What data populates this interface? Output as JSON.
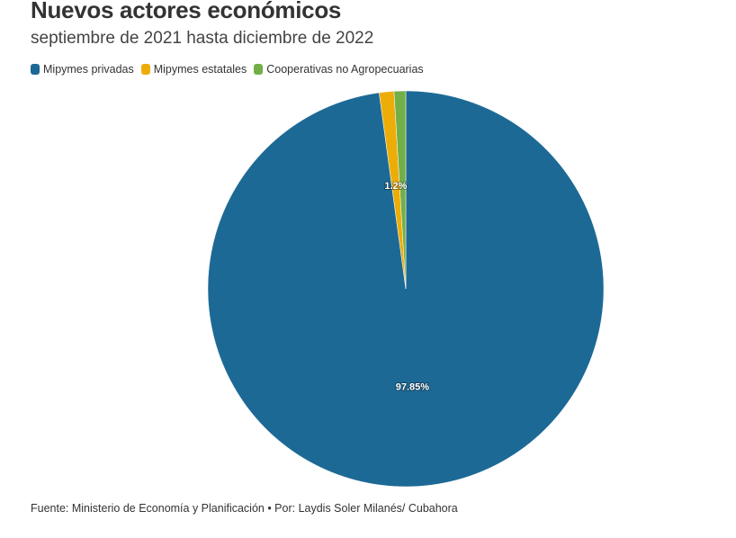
{
  "chart_data": {
    "type": "pie",
    "title": "Nuevos actores económicos",
    "subtitle": "septiembre de 2021 hasta diciembre de 2022",
    "legend_position": "top-left",
    "slices": [
      {
        "name": "Mipymes privadas",
        "value": 97.85,
        "label": "97.85%",
        "color": "#1d6996"
      },
      {
        "name": "Mipymes estatales",
        "value": 1.2,
        "label": "1.2%",
        "color": "#edad08"
      },
      {
        "name": "Cooperativas no Agropecuarias",
        "value": 0.95,
        "label": "",
        "color": "#73af48"
      }
    ]
  },
  "footer": {
    "source": "Fuente: Ministerio de Economía y Planificación • Por: Laydis Soler Milanés/ Cubahora"
  }
}
